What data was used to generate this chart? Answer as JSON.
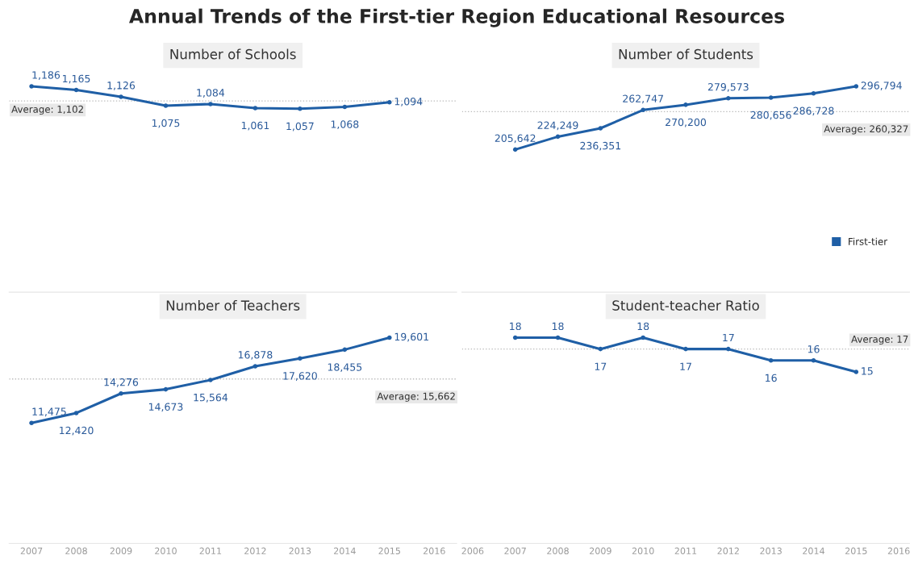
{
  "chart_data": [
    {
      "type": "line",
      "title": "Number of Schools",
      "annotations": [
        "Annual Trends of the First-tier Region Educational Resources"
      ],
      "x": [
        2007,
        2008,
        2009,
        2010,
        2011,
        2012,
        2013,
        2014,
        2015
      ],
      "series": [
        {
          "color": "#1f5fa6",
          "values": [
            1186,
            1165,
            1126,
            1075,
            1084,
            1061,
            1057,
            1068,
            1094
          ],
          "value_labels": [
            "1,186",
            "1,165",
            "1,126",
            "1,075",
            "1,084",
            "1,061",
            "1,057",
            "1,068",
            "1,094"
          ]
        }
      ],
      "xlim": [
        2006.5,
        2016.5
      ],
      "tick_labels": false,
      "marker": "circle",
      "line_style": "solid",
      "grid": false,
      "legend": false,
      "ref_lines": [
        {
          "axis": "y",
          "value": 1102,
          "label": "Average: 1,102",
          "line_style": "dotted",
          "color": "#bbbbbb"
        }
      ]
    },
    {
      "type": "line",
      "title": "Number of Students",
      "x": [
        2007,
        2008,
        2009,
        2010,
        2011,
        2012,
        2013,
        2014,
        2015
      ],
      "series": [
        {
          "name": "First-tier",
          "color": "#1f5fa6",
          "values": [
            205642,
            224249,
            236351,
            262747,
            270200,
            279573,
            280656,
            286728,
            296794
          ],
          "value_labels": [
            "205,642",
            "224,249",
            "236,351",
            "262,747",
            "270,200",
            "279,573",
            "280,656",
            "286,728",
            "296,794"
          ]
        }
      ],
      "xlim": [
        2005.75,
        2016.25
      ],
      "tick_labels": false,
      "marker": "circle",
      "line_style": "solid",
      "grid": false,
      "legend": "right",
      "ref_lines": [
        {
          "axis": "y",
          "value": 260327,
          "label": "Average: 260,327",
          "line_style": "dotted",
          "color": "#bbbbbb"
        }
      ]
    },
    {
      "type": "line",
      "title": "Number of Teachers",
      "x": [
        2007,
        2008,
        2009,
        2010,
        2011,
        2012,
        2013,
        2014,
        2015
      ],
      "series": [
        {
          "color": "#1f5fa6",
          "values": [
            11475,
            12420,
            14276,
            14673,
            15564,
            16878,
            17620,
            18455,
            19601
          ],
          "value_labels": [
            "11,475",
            "12,420",
            "14,276",
            "14,673",
            "15,564",
            "16,878",
            "17,620",
            "18,455",
            "19,601"
          ]
        }
      ],
      "xlim": [
        2006.5,
        2016.5
      ],
      "xticks": [
        2007,
        2008,
        2009,
        2010,
        2011,
        2012,
        2013,
        2014,
        2015,
        2016
      ],
      "tick_labels": "x",
      "marker": "circle",
      "line_style": "solid",
      "grid": false,
      "legend": false,
      "ref_lines": [
        {
          "axis": "y",
          "value": 15662,
          "label": "Average: 15,662",
          "line_style": "dotted",
          "color": "#bbbbbb"
        }
      ]
    },
    {
      "type": "line",
      "title": "Student-teacher Ratio",
      "x": [
        2007,
        2008,
        2009,
        2010,
        2011,
        2012,
        2013,
        2014,
        2015
      ],
      "series": [
        {
          "color": "#1f5fa6",
          "values": [
            18,
            18,
            17,
            18,
            17,
            17,
            16,
            16,
            15
          ],
          "value_labels": [
            "18",
            "18",
            "17",
            "18",
            "17",
            "17",
            "16",
            "16",
            "15"
          ]
        }
      ],
      "xlim": [
        2005.75,
        2016.25
      ],
      "xticks": [
        2006,
        2007,
        2008,
        2009,
        2010,
        2011,
        2012,
        2013,
        2014,
        2015,
        2016
      ],
      "tick_labels": "x",
      "marker": "circle",
      "line_style": "solid",
      "grid": false,
      "legend": false,
      "ref_lines": [
        {
          "axis": "y",
          "value": 17,
          "label": "Average: 17",
          "line_style": "dotted",
          "color": "#bbbbbb"
        }
      ]
    }
  ]
}
